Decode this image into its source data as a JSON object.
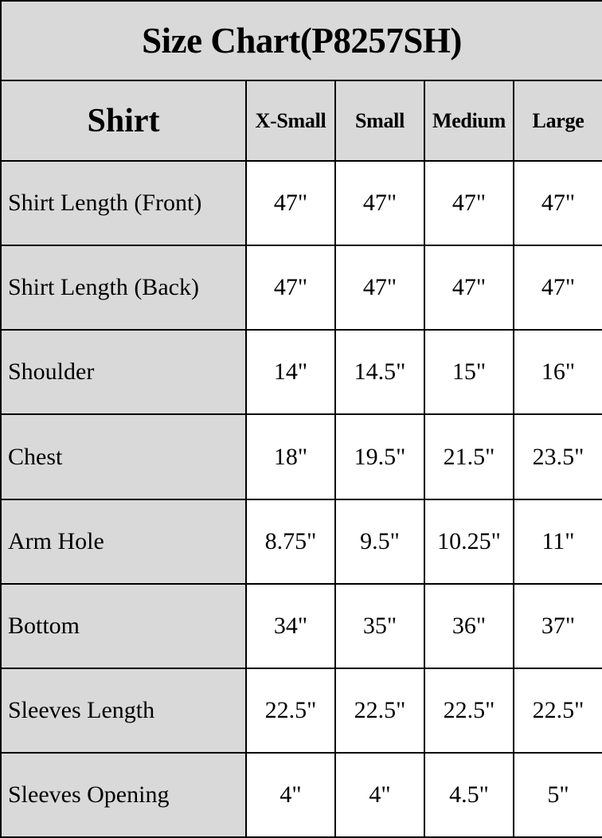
{
  "page_title": "Size Chart(P8257SH)",
  "header": {
    "product_column_label": "Shirt",
    "size_columns": [
      "X-Small",
      "Small",
      "Medium",
      "Large"
    ]
  },
  "measurements": [
    {
      "label": "Shirt Length (Front)",
      "values": [
        "47\"",
        "47\"",
        "47\"",
        "47\""
      ]
    },
    {
      "label": "Shirt Length (Back)",
      "values": [
        "47\"",
        "47\"",
        "47\"",
        "47\""
      ]
    },
    {
      "label": "Shoulder",
      "values": [
        "14\"",
        "14.5\"",
        "15\"",
        "16\""
      ]
    },
    {
      "label": "Chest",
      "values": [
        "18\"",
        "19.5\"",
        "21.5\"",
        "23.5\""
      ]
    },
    {
      "label": "Arm Hole",
      "values": [
        "8.75\"",
        "9.5\"",
        "10.25\"",
        "11\""
      ]
    },
    {
      "label": "Bottom",
      "values": [
        "34\"",
        "35\"",
        "36\"",
        "37\""
      ]
    },
    {
      "label": "Sleeves Length",
      "values": [
        "22.5\"",
        "22.5\"",
        "22.5\"",
        "22.5\""
      ]
    },
    {
      "label": "Sleeves Opening",
      "values": [
        "4\"",
        "4\"",
        "4.5\"",
        "5\""
      ]
    }
  ],
  "colors": {
    "header_background": "#d9d9d9",
    "cell_background": "#ffffff",
    "border": "#000000",
    "text": "#000000"
  },
  "chart_data": {
    "type": "table",
    "title": "Size Chart(P8257SH)",
    "columns": [
      "Shirt",
      "X-Small",
      "Small",
      "Medium",
      "Large"
    ],
    "rows": [
      [
        "Shirt Length (Front)",
        "47\"",
        "47\"",
        "47\"",
        "47\""
      ],
      [
        "Shirt Length (Back)",
        "47\"",
        "47\"",
        "47\"",
        "47\""
      ],
      [
        "Shoulder",
        "14\"",
        "14.5\"",
        "15\"",
        "16\""
      ],
      [
        "Chest",
        "18\"",
        "19.5\"",
        "21.5\"",
        "23.5\""
      ],
      [
        "Arm Hole",
        "8.75\"",
        "9.5\"",
        "10.25\"",
        "11\""
      ],
      [
        "Bottom",
        "34\"",
        "35\"",
        "36\"",
        "37\""
      ],
      [
        "Sleeves Length",
        "22.5\"",
        "22.5\"",
        "22.5\"",
        "22.5\""
      ],
      [
        "Sleeves Opening",
        "4\"",
        "4\"",
        "4.5\"",
        "5\""
      ]
    ]
  }
}
